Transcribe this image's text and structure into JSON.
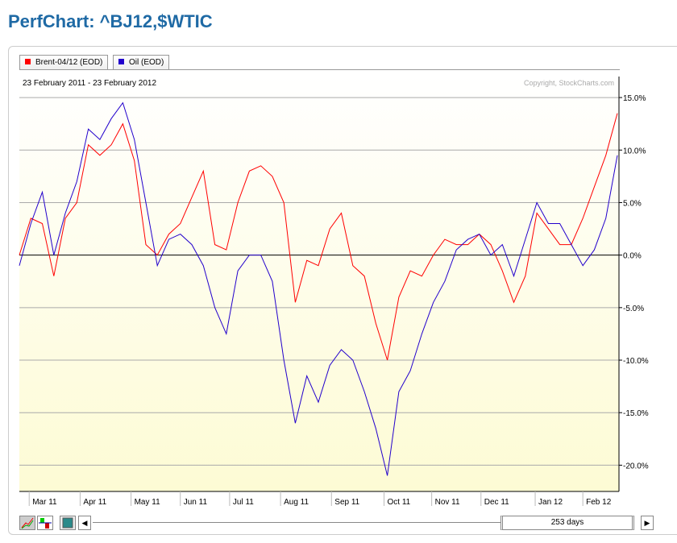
{
  "page_title": "PerfChart: ^BJ12,$WTIC",
  "legend": [
    {
      "label": "Brent-04/12 (EOD)",
      "color": "#ff0000"
    },
    {
      "label": "Oil (EOD)",
      "color": "#2200cc"
    }
  ],
  "date_range": "23 February 2011 - 23 February 2012",
  "copyright": "Copyright, StockCharts.com",
  "controls": {
    "days_label": "253 days"
  },
  "chart_data": {
    "type": "line",
    "ylim": [
      -22.5,
      17
    ],
    "y_ticks": [
      15,
      10,
      5,
      0,
      -5,
      -10,
      -15,
      -20
    ],
    "y_tick_labels": [
      "15.0%",
      "10.0%",
      "5.0%",
      "0.0%",
      "-5.0%",
      "-10.0%",
      "-15.0%",
      "-20.0%"
    ],
    "xlim": [
      "2011-02-23",
      "2012-02-23"
    ],
    "x_ticks": [
      {
        "date": "2011-03-01",
        "label": "Mar 11"
      },
      {
        "date": "2011-04-01",
        "label": "Apr 11"
      },
      {
        "date": "2011-05-02",
        "label": "May 11"
      },
      {
        "date": "2011-06-01",
        "label": "Jun 11"
      },
      {
        "date": "2011-07-01",
        "label": "Jul 11"
      },
      {
        "date": "2011-08-01",
        "label": "Aug 11"
      },
      {
        "date": "2011-09-01",
        "label": "Sep 11"
      },
      {
        "date": "2011-10-03",
        "label": "Oct 11"
      },
      {
        "date": "2011-11-01",
        "label": "Nov 11"
      },
      {
        "date": "2011-12-01",
        "label": "Dec 11"
      },
      {
        "date": "2012-01-03",
        "label": "Jan 12"
      },
      {
        "date": "2012-02-01",
        "label": "Feb 12"
      }
    ],
    "grid": true,
    "x": [
      "2011-02-23",
      "2011-03-02",
      "2011-03-09",
      "2011-03-16",
      "2011-03-23",
      "2011-03-30",
      "2011-04-06",
      "2011-04-13",
      "2011-04-20",
      "2011-04-27",
      "2011-05-04",
      "2011-05-11",
      "2011-05-18",
      "2011-05-25",
      "2011-06-01",
      "2011-06-08",
      "2011-06-15",
      "2011-06-22",
      "2011-06-29",
      "2011-07-06",
      "2011-07-13",
      "2011-07-20",
      "2011-07-27",
      "2011-08-03",
      "2011-08-10",
      "2011-08-17",
      "2011-08-24",
      "2011-08-31",
      "2011-09-07",
      "2011-09-14",
      "2011-09-21",
      "2011-09-28",
      "2011-10-05",
      "2011-10-12",
      "2011-10-19",
      "2011-10-26",
      "2011-11-02",
      "2011-11-09",
      "2011-11-16",
      "2011-11-23",
      "2011-11-30",
      "2011-12-07",
      "2011-12-14",
      "2011-12-21",
      "2011-12-28",
      "2012-01-04",
      "2012-01-11",
      "2012-01-18",
      "2012-01-25",
      "2012-02-01",
      "2012-02-08",
      "2012-02-15",
      "2012-02-22"
    ],
    "series": [
      {
        "name": "Brent-04/12 (EOD)",
        "color": "#ff0000",
        "values": [
          0,
          3.5,
          3,
          -2,
          3.5,
          5,
          10.5,
          9.5,
          10.5,
          12.5,
          9,
          1,
          0,
          2,
          3,
          5.5,
          8,
          1,
          0.5,
          5,
          8,
          8.5,
          7.5,
          5,
          -4.5,
          -0.5,
          -1,
          2.5,
          4,
          -1,
          -2,
          -6.5,
          -10,
          -4,
          -1.5,
          -2,
          0,
          1.5,
          1,
          1,
          2,
          1,
          -1.5,
          -4.5,
          -2,
          4,
          2.5,
          1,
          1,
          3.5,
          6.5,
          9.5,
          13.5
        ]
      },
      {
        "name": "Oil (EOD)",
        "color": "#2200cc",
        "values": [
          -1,
          3,
          6,
          0,
          4,
          7,
          12,
          11,
          13,
          14.5,
          11,
          5,
          -1,
          1.5,
          2,
          1,
          -1,
          -5,
          -7.5,
          -1.5,
          0,
          0,
          -2.5,
          -10,
          -16,
          -11.5,
          -14,
          -10.5,
          -9,
          -10,
          -13,
          -16.5,
          -21,
          -13,
          -11,
          -7.5,
          -4.5,
          -2.5,
          0.5,
          1.5,
          2,
          0,
          1,
          -2,
          1.5,
          5,
          3,
          3,
          1,
          -1,
          0.5,
          3.5,
          9.5
        ]
      }
    ]
  }
}
